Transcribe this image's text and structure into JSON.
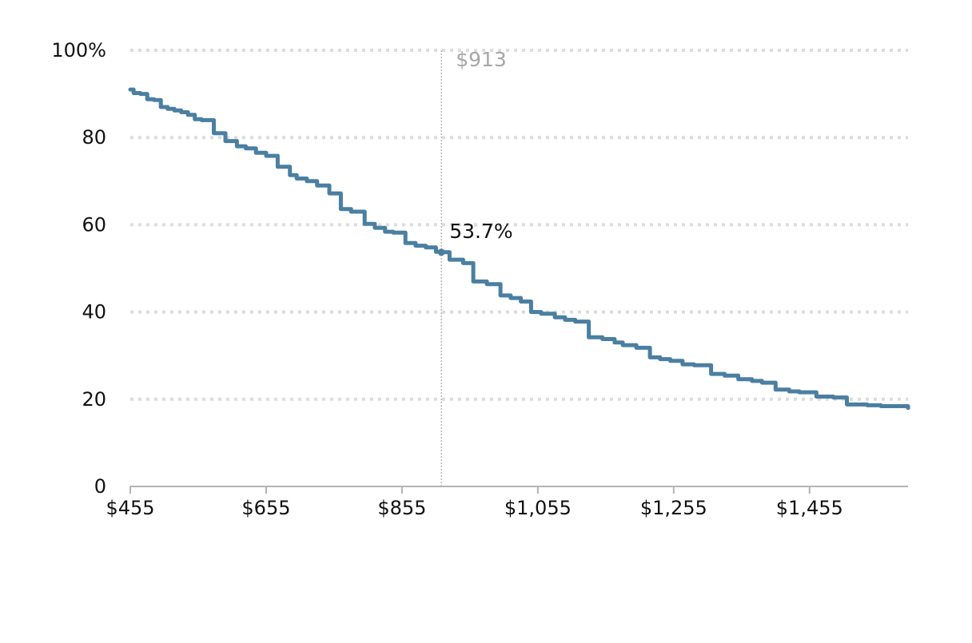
{
  "chart_data": {
    "type": "line",
    "title": "",
    "xlabel": "",
    "ylabel": "",
    "xlim": [
      455,
      1600
    ],
    "ylim": [
      0,
      100
    ],
    "grid": true,
    "line_color": "#4a7fa1",
    "x_ticks": [
      {
        "value": 455,
        "label": "$455"
      },
      {
        "value": 655,
        "label": "$655"
      },
      {
        "value": 855,
        "label": "$855"
      },
      {
        "value": 1055,
        "label": "$1,055"
      },
      {
        "value": 1255,
        "label": "$1,255"
      },
      {
        "value": 1455,
        "label": "$1,455"
      }
    ],
    "y_ticks": [
      {
        "value": 0,
        "label": "0"
      },
      {
        "value": 20,
        "label": "20"
      },
      {
        "value": 40,
        "label": "40"
      },
      {
        "value": 60,
        "label": "60"
      },
      {
        "value": 80,
        "label": "80"
      },
      {
        "value": 100,
        "label": "100%"
      }
    ],
    "marker": {
      "x": 913,
      "y": 53.7,
      "x_label": "$913",
      "y_label": "53.7%"
    },
    "series": [
      {
        "points": [
          [
            455,
            91.0
          ],
          [
            460,
            90.2
          ],
          [
            470,
            90.0
          ],
          [
            480,
            88.8
          ],
          [
            490,
            88.6
          ],
          [
            500,
            87.0
          ],
          [
            510,
            86.6
          ],
          [
            520,
            86.2
          ],
          [
            530,
            85.8
          ],
          [
            540,
            85.2
          ],
          [
            550,
            84.2
          ],
          [
            560,
            84.0
          ],
          [
            578,
            81.0
          ],
          [
            595,
            79.2
          ],
          [
            612,
            78.0
          ],
          [
            625,
            77.5
          ],
          [
            640,
            76.5
          ],
          [
            655,
            75.8
          ],
          [
            672,
            73.3
          ],
          [
            690,
            71.4
          ],
          [
            700,
            70.6
          ],
          [
            715,
            70.0
          ],
          [
            730,
            69.0
          ],
          [
            748,
            67.2
          ],
          [
            765,
            63.6
          ],
          [
            780,
            63.0
          ],
          [
            800,
            60.2
          ],
          [
            815,
            59.3
          ],
          [
            830,
            58.4
          ],
          [
            842,
            58.2
          ],
          [
            860,
            55.8
          ],
          [
            875,
            55.2
          ],
          [
            890,
            54.8
          ],
          [
            905,
            53.8
          ],
          [
            913,
            53.7
          ],
          [
            925,
            52.0
          ],
          [
            945,
            51.2
          ],
          [
            960,
            47.0
          ],
          [
            980,
            46.4
          ],
          [
            1000,
            43.8
          ],
          [
            1015,
            43.2
          ],
          [
            1030,
            42.4
          ],
          [
            1045,
            40.0
          ],
          [
            1060,
            39.6
          ],
          [
            1080,
            38.8
          ],
          [
            1095,
            38.2
          ],
          [
            1110,
            37.8
          ],
          [
            1130,
            34.2
          ],
          [
            1150,
            33.8
          ],
          [
            1168,
            33.0
          ],
          [
            1180,
            32.4
          ],
          [
            1200,
            31.8
          ],
          [
            1220,
            29.6
          ],
          [
            1235,
            29.2
          ],
          [
            1250,
            28.8
          ],
          [
            1268,
            28.0
          ],
          [
            1285,
            27.8
          ],
          [
            1310,
            25.8
          ],
          [
            1330,
            25.4
          ],
          [
            1350,
            24.6
          ],
          [
            1370,
            24.2
          ],
          [
            1385,
            23.8
          ],
          [
            1405,
            22.2
          ],
          [
            1425,
            21.8
          ],
          [
            1440,
            21.6
          ],
          [
            1465,
            20.6
          ],
          [
            1490,
            20.4
          ],
          [
            1510,
            18.8
          ],
          [
            1540,
            18.6
          ],
          [
            1560,
            18.4
          ],
          [
            1600,
            18.0
          ]
        ]
      }
    ]
  }
}
